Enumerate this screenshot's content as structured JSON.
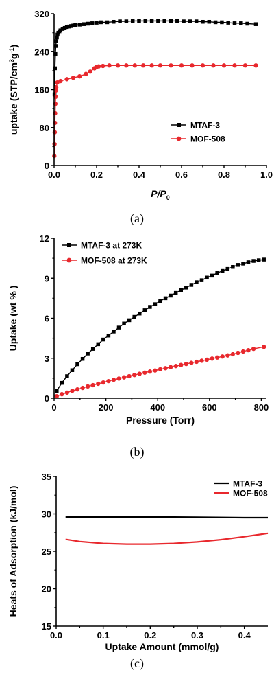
{
  "chart_data": [
    {
      "type": "scatter",
      "caption": "(a)",
      "xlabel": "P/P0",
      "xlabel_main": "P/P",
      "xlabel_sub": "0",
      "ylabel": "uptake (STP/cm3g-1)",
      "ylabel_parts": [
        "uptake (STP/cm",
        "3",
        "g",
        "-1",
        ")"
      ],
      "xlim": [
        0.0,
        1.0
      ],
      "ylim": [
        0,
        320
      ],
      "xticks": [
        "0.0",
        "0.2",
        "0.4",
        "0.6",
        "0.8",
        "1.0"
      ],
      "yticks": [
        "0",
        "80",
        "160",
        "240",
        "320"
      ],
      "legend_position": "lower-right",
      "series": [
        {
          "name": "MTAF-3",
          "color": "#000000",
          "marker": "square",
          "x": [
            0.002,
            0.004,
            0.006,
            0.008,
            0.01,
            0.013,
            0.016,
            0.02,
            0.025,
            0.03,
            0.04,
            0.05,
            0.06,
            0.07,
            0.08,
            0.09,
            0.1,
            0.12,
            0.14,
            0.16,
            0.18,
            0.2,
            0.22,
            0.25,
            0.28,
            0.31,
            0.34,
            0.37,
            0.4,
            0.43,
            0.46,
            0.49,
            0.52,
            0.55,
            0.58,
            0.61,
            0.64,
            0.67,
            0.7,
            0.73,
            0.76,
            0.79,
            0.82,
            0.85,
            0.88,
            0.91,
            0.95
          ],
          "y": [
            150,
            205,
            235,
            252,
            262,
            270,
            276,
            280,
            283,
            285,
            288,
            290,
            292,
            293,
            294,
            295,
            296,
            297,
            298,
            299,
            300,
            301,
            302,
            302,
            303,
            304,
            304,
            305,
            305,
            305,
            305,
            305,
            305,
            305,
            305,
            304,
            304,
            304,
            303,
            303,
            302,
            302,
            301,
            300,
            300,
            299,
            298
          ]
        },
        {
          "name": "MOF-508",
          "color": "#e8282d",
          "marker": "circle",
          "x": [
            0.001,
            0.002,
            0.003,
            0.004,
            0.005,
            0.006,
            0.007,
            0.008,
            0.01,
            0.015,
            0.03,
            0.06,
            0.09,
            0.12,
            0.15,
            0.17,
            0.19,
            0.2,
            0.21,
            0.23,
            0.26,
            0.3,
            0.34,
            0.38,
            0.42,
            0.46,
            0.5,
            0.55,
            0.6,
            0.65,
            0.7,
            0.75,
            0.8,
            0.85,
            0.9,
            0.95
          ],
          "y": [
            20,
            45,
            70,
            90,
            110,
            130,
            145,
            158,
            165,
            175,
            178,
            182,
            185,
            188,
            193,
            198,
            205,
            208,
            209,
            210,
            211,
            211,
            211,
            211,
            211,
            211,
            211,
            211,
            211,
            211,
            211,
            211,
            211,
            211,
            211,
            211
          ]
        }
      ]
    },
    {
      "type": "scatter",
      "caption": "(b)",
      "xlabel": "Pressure (Torr)",
      "ylabel": "Uptake (wt % )",
      "xlim": [
        0,
        820
      ],
      "ylim": [
        0,
        12
      ],
      "xticks": [
        "0",
        "200",
        "400",
        "600",
        "800"
      ],
      "xtick_values": [
        0,
        200,
        400,
        600,
        800
      ],
      "yticks": [
        "0",
        "3",
        "6",
        "9",
        "12"
      ],
      "legend_position": "top-left",
      "series": [
        {
          "name": "MTAF-3 at 273K",
          "color": "#000000",
          "marker": "square",
          "x": [
            10,
            30,
            50,
            70,
            90,
            110,
            130,
            150,
            170,
            190,
            210,
            230,
            250,
            270,
            290,
            310,
            330,
            350,
            370,
            390,
            410,
            430,
            450,
            470,
            490,
            510,
            530,
            550,
            570,
            590,
            610,
            630,
            650,
            670,
            690,
            710,
            730,
            750,
            770,
            790,
            810
          ],
          "y": [
            0.55,
            1.15,
            1.65,
            2.1,
            2.55,
            2.95,
            3.35,
            3.7,
            4.05,
            4.4,
            4.7,
            5.0,
            5.3,
            5.6,
            5.85,
            6.1,
            6.35,
            6.6,
            6.85,
            7.05,
            7.3,
            7.5,
            7.7,
            7.9,
            8.1,
            8.3,
            8.5,
            8.7,
            8.85,
            9.05,
            9.2,
            9.4,
            9.55,
            9.7,
            9.85,
            10.0,
            10.1,
            10.2,
            10.3,
            10.35,
            10.4
          ]
        },
        {
          "name": "MOF-508 at 273K",
          "color": "#e8282d",
          "marker": "circle",
          "x": [
            10,
            30,
            50,
            70,
            90,
            110,
            130,
            150,
            170,
            190,
            210,
            230,
            250,
            270,
            290,
            310,
            330,
            350,
            370,
            390,
            410,
            430,
            450,
            470,
            490,
            510,
            530,
            550,
            570,
            590,
            610,
            630,
            650,
            670,
            690,
            710,
            730,
            750,
            770,
            810
          ],
          "y": [
            0.15,
            0.3,
            0.42,
            0.55,
            0.66,
            0.77,
            0.88,
            0.98,
            1.08,
            1.18,
            1.28,
            1.38,
            1.47,
            1.56,
            1.65,
            1.74,
            1.83,
            1.92,
            2.0,
            2.08,
            2.17,
            2.25,
            2.33,
            2.41,
            2.49,
            2.57,
            2.65,
            2.73,
            2.81,
            2.89,
            2.97,
            3.05,
            3.13,
            3.21,
            3.3,
            3.4,
            3.5,
            3.6,
            3.7,
            3.85
          ]
        }
      ]
    },
    {
      "type": "line",
      "caption": "(c)",
      "xlabel": "Uptake Amount (mmol/g)",
      "ylabel": "Heats of Adsorption (kJ/mol)",
      "xlim": [
        0.0,
        0.45
      ],
      "ylim": [
        15,
        35
      ],
      "xticks": [
        "0.0",
        "0.1",
        "0.2",
        "0.3",
        "0.4"
      ],
      "xtick_values": [
        0.0,
        0.1,
        0.2,
        0.3,
        0.4
      ],
      "yticks": [
        "15",
        "20",
        "25",
        "30",
        "35"
      ],
      "legend_position": "top-right",
      "series": [
        {
          "name": "MTAF-3",
          "color": "#000000",
          "x": [
            0.02,
            0.1,
            0.2,
            0.3,
            0.4,
            0.45
          ],
          "y": [
            29.6,
            29.6,
            29.6,
            29.55,
            29.5,
            29.5
          ]
        },
        {
          "name": "MOF-508",
          "color": "#e8282d",
          "x": [
            0.02,
            0.05,
            0.1,
            0.15,
            0.2,
            0.25,
            0.3,
            0.35,
            0.4,
            0.45
          ],
          "y": [
            26.6,
            26.3,
            26.05,
            25.95,
            25.95,
            26.05,
            26.25,
            26.55,
            26.95,
            27.4
          ]
        }
      ]
    }
  ]
}
